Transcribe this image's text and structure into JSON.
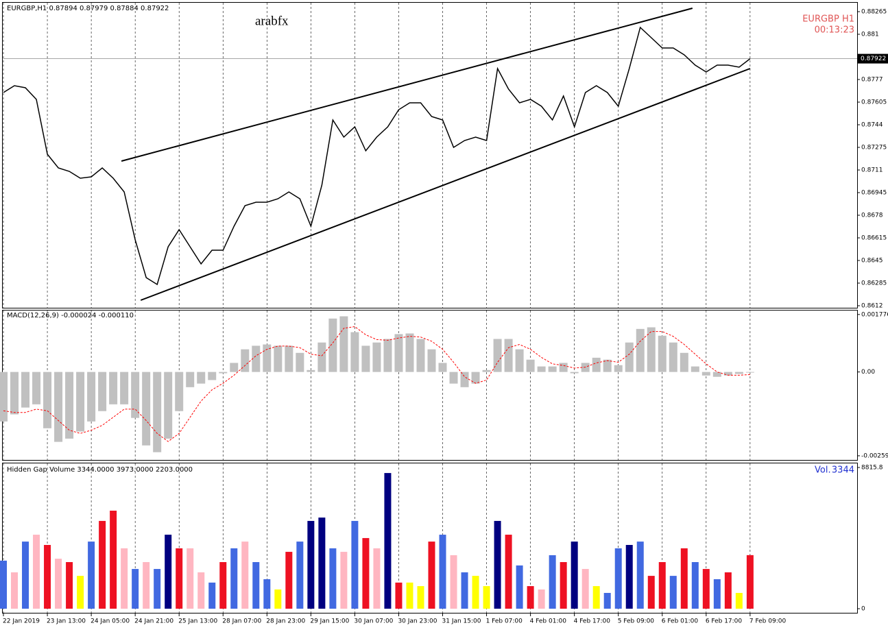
{
  "chart_data": [
    {
      "type": "line",
      "title": "EURGBP,H1  0.87894 0.87979 0.87884 0.87922",
      "annotations": [
        "arabfx",
        "EURGBP  H1",
        "00:13:23"
      ],
      "color": "#000000",
      "grid": true,
      "last_price": 0.87922,
      "x": [
        0,
        4,
        8,
        12,
        16,
        20,
        24,
        28,
        32,
        36,
        40,
        44,
        48,
        52,
        56,
        60,
        64,
        68,
        72,
        76,
        80,
        84,
        88,
        92,
        96,
        100,
        104,
        108,
        112,
        116,
        120,
        124,
        128,
        132,
        136,
        140,
        144,
        148,
        152,
        156,
        160,
        164,
        168,
        172,
        176,
        180,
        184,
        188,
        192,
        196,
        200,
        204,
        208,
        212,
        216,
        220,
        224,
        228,
        232,
        236,
        240,
        244,
        248,
        252,
        256,
        260,
        264,
        268,
        272
      ],
      "values": [
        0.87675,
        0.87725,
        0.8771,
        0.87625,
        0.87225,
        0.87125,
        0.871,
        0.8705,
        0.8706,
        0.87125,
        0.8705,
        0.8695,
        0.866,
        0.86325,
        0.86275,
        0.8655,
        0.86675,
        0.8655,
        0.86425,
        0.86525,
        0.86525,
        0.867,
        0.8685,
        0.86875,
        0.86875,
        0.869,
        0.8695,
        0.869,
        0.867,
        0.87,
        0.87475,
        0.8735,
        0.87425,
        0.8725,
        0.8735,
        0.87425,
        0.8755,
        0.876,
        0.876,
        0.875,
        0.87475,
        0.87275,
        0.87325,
        0.8735,
        0.87325,
        0.8785,
        0.877,
        0.876,
        0.87625,
        0.87575,
        0.87475,
        0.8765,
        0.87425,
        0.87675,
        0.87725,
        0.87675,
        0.87575,
        0.8785,
        0.8815,
        0.88075,
        0.88,
        0.88,
        0.8795,
        0.87875,
        0.87825,
        0.87875,
        0.87875,
        0.8786,
        0.87922
      ],
      "trendlines": [
        {
          "x": [
            43,
            251
          ],
          "values": [
            0.87175,
            0.8829
          ]
        },
        {
          "x": [
            50,
            272
          ],
          "values": [
            0.8616,
            0.8785
          ]
        }
      ],
      "xlim": [
        0,
        311
      ],
      "ylim": [
        0.86105,
        0.8835
      ],
      "yticks": [
        0.88265,
        0.881,
        0.87935,
        0.8777,
        0.87605,
        0.8744,
        0.87275,
        0.8711,
        0.86945,
        0.8678,
        0.86615,
        0.8645,
        0.86285,
        0.8612
      ]
    },
    {
      "type": "bar",
      "title": "MACD(12,26,9) -0.000024 -0.000110",
      "grid": true,
      "x": [
        0,
        4,
        8,
        12,
        16,
        20,
        24,
        28,
        32,
        36,
        40,
        44,
        48,
        52,
        56,
        60,
        64,
        68,
        72,
        76,
        80,
        84,
        88,
        92,
        96,
        100,
        104,
        108,
        112,
        116,
        120,
        124,
        128,
        132,
        136,
        140,
        144,
        148,
        152,
        156,
        160,
        164,
        168,
        172,
        176,
        180,
        184,
        188,
        192,
        196,
        200,
        204,
        208,
        212,
        216,
        220,
        224,
        228,
        232,
        236,
        240,
        244,
        248,
        252,
        256,
        260,
        264,
        268,
        272
      ],
      "series": [
        {
          "type": "bar",
          "color": "#c0c0c0",
          "values": [
            -0.00153,
            -0.00131,
            -0.0011,
            -0.001,
            -0.00174,
            -0.00216,
            -0.00206,
            -0.00184,
            -0.00153,
            -0.00121,
            -0.001,
            -0.001,
            -0.00142,
            -0.00227,
            -0.00248,
            -0.00206,
            -0.00121,
            -0.00047,
            -0.00036,
            -0.00025,
            -4e-05,
            0.00028,
            0.0007,
            0.00081,
            0.00085,
            0.00081,
            0.00081,
            0.00059,
            6e-05,
            0.00091,
            0.00165,
            0.00172,
            0.00123,
            0.00081,
            0.00091,
            0.00102,
            0.00117,
            0.00119,
            0.00102,
            0.0007,
            0.00028,
            -0.00036,
            -0.00047,
            -0.00036,
            6e-05,
            0.00102,
            0.00102,
            0.0007,
            0.00038,
            0.00017,
            0.00017,
            0.00028,
            -4e-05,
            0.00028,
            0.00044,
            0.00038,
            0.00021,
            0.00091,
            0.00133,
            0.00138,
            0.00112,
            0.00091,
            0.00059,
            0.00017,
            -0.00011,
            -0.00015,
            -0.00011,
            -6e-05,
            -2e-05
          ]
        },
        {
          "type": "line",
          "color": "#ff0000",
          "values": [
            -0.0012,
            -0.00125,
            -0.00125,
            -0.00115,
            -0.0012,
            -0.0015,
            -0.0018,
            -0.0019,
            -0.0018,
            -0.00165,
            -0.0014,
            -0.00115,
            -0.00115,
            -0.0015,
            -0.0019,
            -0.00215,
            -0.0019,
            -0.0014,
            -0.0009,
            -0.00055,
            -0.00035,
            -0.0001,
            0.0002,
            0.0005,
            0.0007,
            0.0008,
            0.0008,
            0.00075,
            0.00055,
            0.0005,
            0.0009,
            0.00135,
            0.0014,
            0.00115,
            0.001,
            0.00098,
            0.00105,
            0.0011,
            0.00108,
            0.00095,
            0.0007,
            0.0003,
            -0.00015,
            -0.00035,
            -0.00025,
            0.0003,
            0.00075,
            0.00085,
            0.0007,
            0.00045,
            0.00025,
            0.0002,
            0.00012,
            0.00015,
            0.00028,
            0.00035,
            0.0003,
            0.00055,
            0.00095,
            0.00125,
            0.00125,
            0.0011,
            0.00085,
            0.00055,
            0.00025,
            0.0,
            -0.0001,
            -0.0001,
            -8e-05
          ]
        }
      ],
      "xlim": [
        0,
        311
      ],
      "ylim": [
        -0.00274,
        0.00192
      ],
      "yticks": [
        0.001776,
        {
          "value": 0,
          "label": "0.00"
        },
        -0.00259
      ]
    },
    {
      "type": "bar",
      "title": "Hidden Gap Volume 3344.0000 3973.0000 2203.0000",
      "grid": true,
      "volume_label": "Vol.",
      "current_volume": 3344,
      "x": [
        0,
        4,
        8,
        12,
        16,
        20,
        24,
        28,
        32,
        36,
        40,
        44,
        48,
        52,
        56,
        60,
        64,
        68,
        72,
        76,
        80,
        84,
        88,
        92,
        96,
        100,
        104,
        108,
        112,
        116,
        120,
        124,
        128,
        132,
        136,
        140,
        144,
        148,
        152,
        156,
        160,
        164,
        168,
        172,
        176,
        180,
        184,
        188,
        192,
        196,
        200,
        204,
        208,
        212,
        216,
        220,
        224,
        228,
        232,
        236,
        240,
        244,
        248,
        252,
        256,
        260,
        264,
        268,
        272
      ],
      "values": [
        3000,
        2270,
        4190,
        4620,
        3980,
        3120,
        2910,
        2050,
        4190,
        5480,
        6120,
        3770,
        2480,
        2910,
        2480,
        4620,
        3770,
        3770,
        2270,
        1630,
        2910,
        3770,
        4190,
        2910,
        1840,
        1200,
        3550,
        4190,
        5480,
        5690,
        3770,
        3550,
        5480,
        4410,
        3770,
        8470,
        1630,
        1630,
        1410,
        4190,
        4620,
        3340,
        2270,
        2050,
        1410,
        5480,
        4620,
        2700,
        1410,
        1200,
        3340,
        2910,
        4190,
        2480,
        1410,
        985,
        3770,
        3980,
        4190,
        2050,
        2910,
        2050,
        3770,
        2910,
        2480,
        1840,
        2270,
        985,
        3344
      ],
      "colors": [
        "#4169e1",
        "#ffb6c1",
        "#4169e1",
        "#ffb6c1",
        "#ee1122",
        "#ffb6c1",
        "#ee1122",
        "#ffff00",
        "#4169e1",
        "#ee1122",
        "#ee1122",
        "#ffb6c1",
        "#4169e1",
        "#ffb6c1",
        "#4169e1",
        "#000080",
        "#ee1122",
        "#ffb6c1",
        "#ffb6c1",
        "#4169e1",
        "#ee1122",
        "#4169e1",
        "#ffb6c1",
        "#4169e1",
        "#4169e1",
        "#ffff00",
        "#ee1122",
        "#4169e1",
        "#000080",
        "#000080",
        "#4169e1",
        "#ffb6c1",
        "#4169e1",
        "#ee1122",
        "#ffb6c1",
        "#000080",
        "#ee1122",
        "#ffff00",
        "#ffff00",
        "#ee1122",
        "#4169e1",
        "#ffb6c1",
        "#4169e1",
        "#ffff00",
        "#ffff00",
        "#000080",
        "#ee1122",
        "#4169e1",
        "#ee1122",
        "#ffb6c1",
        "#4169e1",
        "#ee1122",
        "#000080",
        "#ffb6c1",
        "#ffff00",
        "#4169e1",
        "#4169e1",
        "#000080",
        "#4169e1",
        "#ee1122",
        "#ee1122",
        "#4169e1",
        "#ee1122",
        "#4169e1",
        "#ee1122",
        "#4169e1",
        "#ee1122",
        "#ffff00",
        "#ee1122"
      ],
      "xlim": [
        0,
        311
      ],
      "ylim": [
        0,
        8815.8
      ],
      "yticks": [
        0,
        8815.8
      ],
      "xticks": [
        {
          "value": 0,
          "label": "22 Jan 2019"
        },
        {
          "value": 16,
          "label": "23 Jan 13:00"
        },
        {
          "value": 32,
          "label": "24 Jan 05:00"
        },
        {
          "value": 48,
          "label": "24 Jan 21:00"
        },
        {
          "value": 64,
          "label": "25 Jan 13:00"
        },
        {
          "value": 80,
          "label": "28 Jan 07:00"
        },
        {
          "value": 96,
          "label": "28 Jan 23:00"
        },
        {
          "value": 112,
          "label": "29 Jan 15:00"
        },
        {
          "value": 128,
          "label": "30 Jan 07:00"
        },
        {
          "value": 144,
          "label": "30 Jan 23:00"
        },
        {
          "value": 160,
          "label": "31 Jan 15:00"
        },
        {
          "value": 176,
          "label": "1 Feb 07:00"
        },
        {
          "value": 192,
          "label": "4 Feb 01:00"
        },
        {
          "value": 208,
          "label": "4 Feb 17:00"
        },
        {
          "value": 224,
          "label": "5 Feb 09:00"
        },
        {
          "value": 240,
          "label": "6 Feb 01:00"
        },
        {
          "value": 256,
          "label": "6 Feb 17:00"
        },
        {
          "value": 272,
          "label": "7 Feb 09:00"
        }
      ]
    }
  ]
}
